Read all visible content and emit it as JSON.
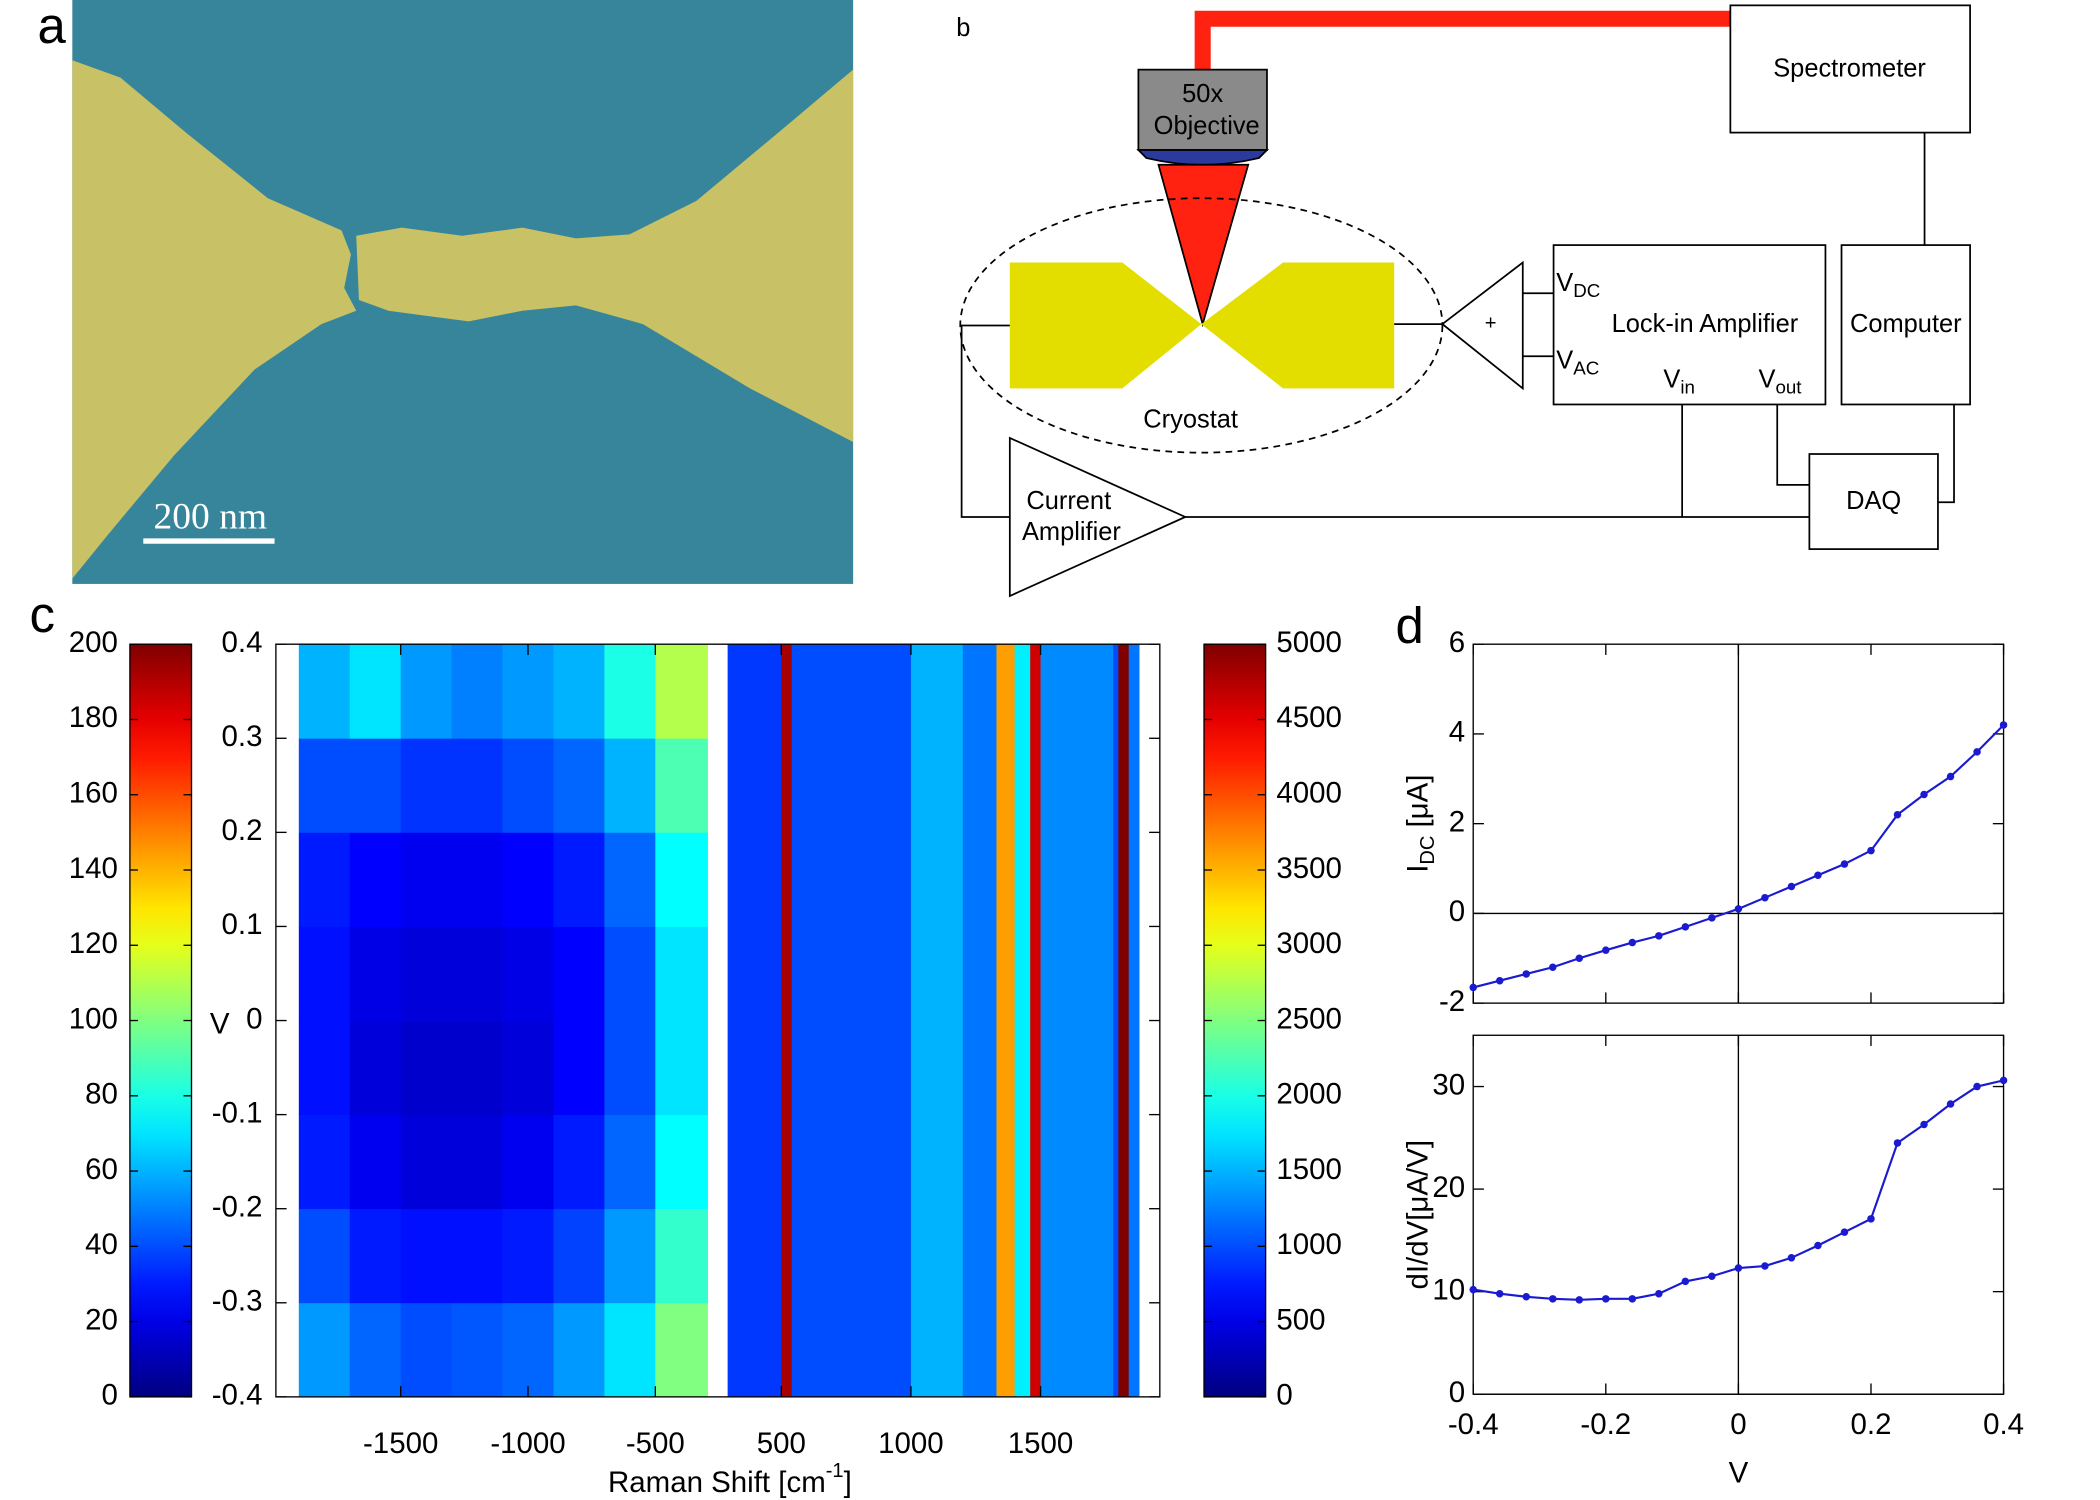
{
  "panels": {
    "a": {
      "letter": "a",
      "scale_bar": "200 nm"
    },
    "b": {
      "letter": "b",
      "objective": [
        "50x",
        "Objective"
      ],
      "spectrometer": "Spectrometer",
      "computer": "Computer",
      "lockin": "Lock-in Amplifier",
      "cryostat": "Cryostat",
      "current_amp": [
        "Current",
        "Amplifier"
      ],
      "daq": "DAQ",
      "adder": "+",
      "v_dc": {
        "main": "V",
        "sub": "DC"
      },
      "v_ac": {
        "main": "V",
        "sub": "AC"
      },
      "v_in": {
        "main": "V",
        "sub": "in"
      },
      "v_out": {
        "main": "V",
        "sub": "out"
      }
    },
    "c": {
      "letter": "c"
    },
    "d": {
      "letter": "d"
    }
  },
  "chart_data": [
    {
      "type": "heatmap",
      "ylabel": "V",
      "xlabel": {
        "main": "Raman Shift [cm",
        "sup": "-1",
        "tail": "]"
      },
      "ylim": [
        -0.4,
        0.4
      ],
      "yticks": [
        -0.4,
        -0.3,
        -0.2,
        -0.1,
        0,
        0.1,
        0.2,
        0.3,
        0.4
      ],
      "colorbar_left": {
        "lim": [
          0,
          200
        ],
        "ticks": [
          0,
          20,
          40,
          60,
          80,
          100,
          120,
          140,
          160,
          180,
          200
        ]
      },
      "colorbar_right": {
        "lim": [
          0,
          5000
        ],
        "ticks": [
          0,
          500,
          1000,
          1500,
          2000,
          2500,
          3000,
          3500,
          4000,
          4500,
          5000
        ]
      },
      "panels": [
        {
          "colorbar": "left",
          "xlim": [
            -1990,
            -265
          ],
          "xticks": [
            -1500,
            -1000,
            -500
          ],
          "x_bins": [
            -1900,
            -1700,
            -1500,
            -1300,
            -1100,
            -900,
            -700,
            -500,
            -295
          ],
          "y_bins": [
            -0.4,
            -0.3,
            -0.2,
            -0.1,
            0,
            0.1,
            0.2,
            0.3,
            0.4
          ],
          "values": [
            [
              55,
              45,
              40,
              42,
              45,
              55,
              70,
              100
            ],
            [
              40,
              30,
              28,
              28,
              30,
              38,
              55,
              85
            ],
            [
              30,
              22,
              18,
              18,
              22,
              30,
              45,
              75
            ],
            [
              28,
              18,
              15,
              15,
              18,
              25,
              40,
              70
            ],
            [
              28,
              20,
              18,
              18,
              20,
              25,
              40,
              70
            ],
            [
              30,
              25,
              22,
              22,
              25,
              30,
              45,
              75
            ],
            [
              40,
              40,
              35,
              35,
              40,
              45,
              60,
              90
            ],
            [
              60,
              70,
              55,
              50,
              55,
              60,
              80,
              110
            ]
          ]
        },
        {
          "colorbar": "right",
          "xlim": [
            245,
            1960
          ],
          "xticks": [
            500,
            1000,
            1500
          ],
          "x_bins": [
            293,
            500,
            540,
            1000,
            1200,
            1330,
            1400,
            1460,
            1500,
            1780,
            1800,
            1840,
            1880
          ],
          "values": [
            900,
            4800,
            1000,
            1500,
            1200,
            3600,
            1800,
            4600,
            1300,
            1000,
            5000,
            1200
          ]
        }
      ]
    },
    {
      "type": "line",
      "ylabel": {
        "main": "I",
        "sub": "DC",
        "tail": "[μA]"
      },
      "x": [
        -0.4,
        -0.36,
        -0.32,
        -0.28,
        -0.24,
        -0.2,
        -0.16,
        -0.12,
        -0.08,
        -0.04,
        0,
        0.04,
        0.08,
        0.12,
        0.16,
        0.2,
        0.24,
        0.28,
        0.32,
        0.36,
        0.4
      ],
      "series": [
        {
          "color": "#1a1ad0",
          "values": [
            -1.65,
            -1.5,
            -1.35,
            -1.2,
            -1.0,
            -0.82,
            -0.65,
            -0.5,
            -0.3,
            -0.1,
            0.1,
            0.35,
            0.6,
            0.85,
            1.1,
            1.4,
            2.2,
            2.65,
            3.05,
            3.6,
            4.2
          ]
        }
      ],
      "xlim": [
        -0.4,
        0.4
      ],
      "xticks": [
        -0.4,
        -0.2,
        0,
        0.2,
        0.4
      ],
      "show_xtick_labels": false,
      "ylim": [
        -2,
        6
      ],
      "yticks": [
        -2,
        0,
        2,
        4,
        6
      ],
      "zero_lines": true
    },
    {
      "type": "line",
      "ylabel": {
        "main": "dI/dV",
        "tail": "[μA/V]"
      },
      "xlabel": "V",
      "x": [
        -0.4,
        -0.36,
        -0.32,
        -0.28,
        -0.24,
        -0.2,
        -0.16,
        -0.12,
        -0.08,
        -0.04,
        0,
        0.04,
        0.08,
        0.12,
        0.16,
        0.2,
        0.24,
        0.28,
        0.32,
        0.36,
        0.4
      ],
      "series": [
        {
          "color": "#1a1ad0",
          "values": [
            10.2,
            9.8,
            9.5,
            9.3,
            9.2,
            9.3,
            9.3,
            9.8,
            11,
            11.5,
            12.3,
            12.5,
            13.3,
            14.5,
            15.8,
            17.1,
            24.5,
            26.3,
            28.3,
            30,
            30.6
          ]
        }
      ],
      "xlim": [
        -0.4,
        0.4
      ],
      "xticks": [
        -0.4,
        -0.2,
        0,
        0.2,
        0.4
      ],
      "show_xtick_labels": true,
      "ylim": [
        0,
        35
      ],
      "yticks": [
        0,
        10,
        20,
        30
      ],
      "zero_lines": true
    }
  ]
}
